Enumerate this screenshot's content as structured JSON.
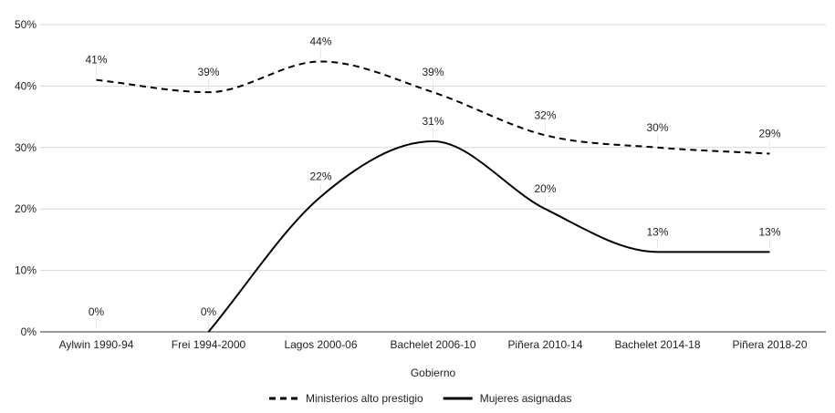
{
  "chart_data": {
    "type": "line",
    "xlabel": "Gobierno",
    "ylabel": "",
    "ylim": [
      0,
      50
    ],
    "y_ticks": [
      "0%",
      "10%",
      "20%",
      "30%",
      "40%",
      "50%"
    ],
    "y_tick_values": [
      0,
      10,
      20,
      30,
      40,
      50
    ],
    "grid": true,
    "legend": "bottom",
    "categories": [
      "Aylwin 1990-94",
      "Frei 1994-2000",
      "Lagos 2000-06",
      "Bachelet 2006-10",
      "Piñera 2010-14",
      "Bachelet 2014-18",
      "Piñera 2018-20"
    ],
    "series": [
      {
        "name": "Ministerios alto prestigio",
        "style": "dashed",
        "color": "#000000",
        "values": [
          41,
          39,
          44,
          39,
          32,
          30,
          29
        ],
        "labels": [
          "41%",
          "39%",
          "44%",
          "39%",
          "32%",
          "30%",
          "29%"
        ]
      },
      {
        "name": "Mujeres asignadas",
        "style": "solid",
        "color": "#000000",
        "values": [
          0,
          0,
          22,
          31,
          20,
          13,
          13
        ],
        "labels": [
          "0%",
          "0%",
          "22%",
          "31%",
          "20%",
          "13%",
          "13%"
        ]
      }
    ]
  }
}
